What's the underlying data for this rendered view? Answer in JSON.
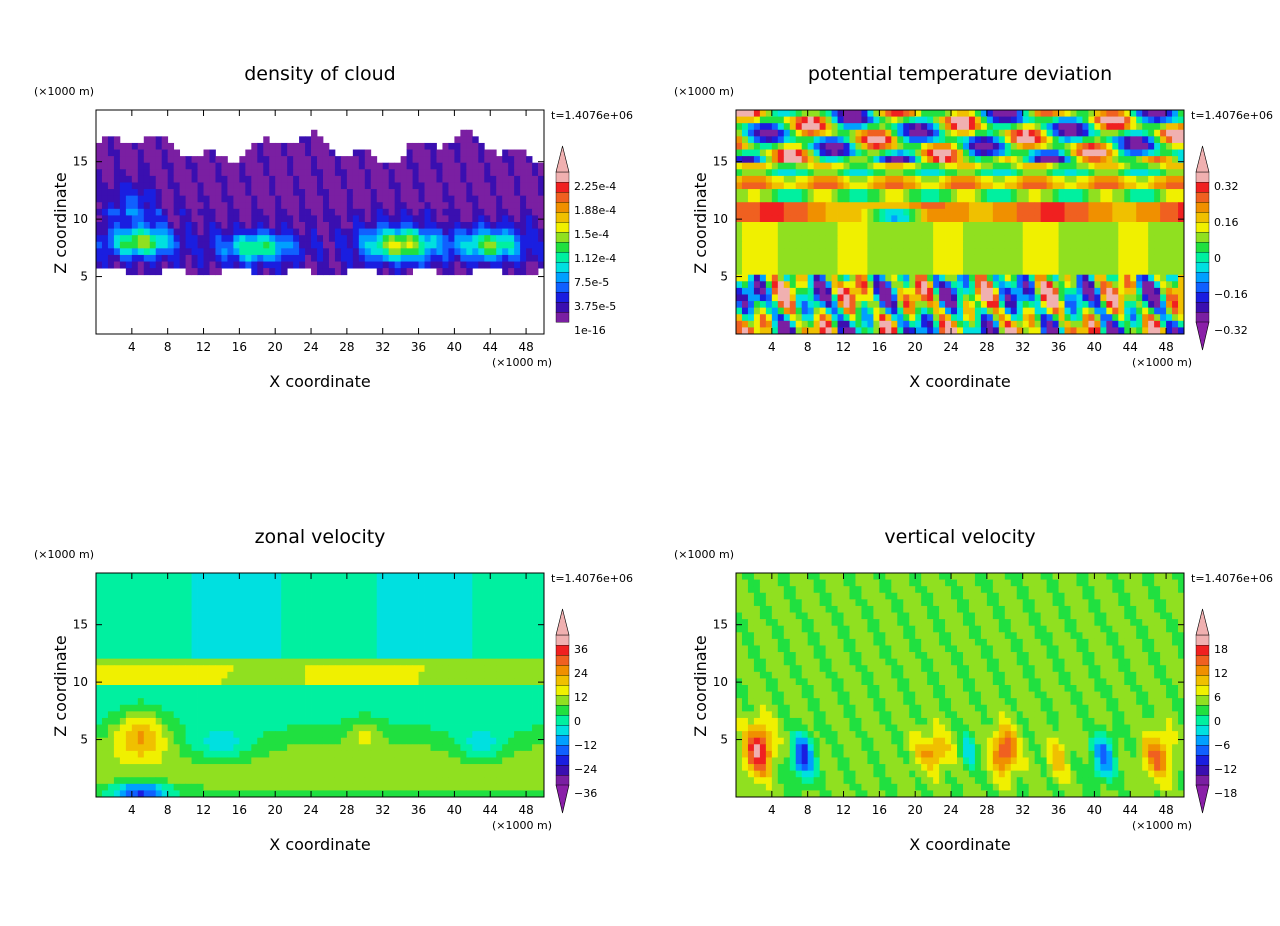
{
  "chart_data": [
    {
      "type": "heatmap",
      "title": "density of cloud",
      "xlabel": "X coordinate",
      "ylabel": "Z coordinate",
      "x_units": "(×1000 m)",
      "y_units": "(×1000 m)",
      "time_label": "t=1.4076e+06",
      "xlim": [
        0,
        50
      ],
      "ylim": [
        0,
        19.5
      ],
      "x_ticks": [
        "4",
        "8",
        "12",
        "16",
        "20",
        "24",
        "28",
        "32",
        "36",
        "40",
        "44",
        "48"
      ],
      "y_ticks": [
        "5",
        "10",
        "15"
      ],
      "colorbar_labels": [
        "1e-16",
        "3.75e-5",
        "7.5e-5",
        "1.12e-4",
        "1.5e-4",
        "1.88e-4",
        "2.25e-4"
      ],
      "colorbar_levels": 15,
      "colorbar_extends": "top",
      "field": "cloud"
    },
    {
      "type": "heatmap",
      "title": "potential temperature deviation",
      "xlabel": "X coordinate",
      "ylabel": "Z coordinate",
      "x_units": "(×1000 m)",
      "y_units": "(×1000 m)",
      "time_label": "t=1.4076e+06",
      "xlim": [
        0,
        50
      ],
      "ylim": [
        0,
        19.5
      ],
      "x_ticks": [
        "4",
        "8",
        "12",
        "16",
        "20",
        "24",
        "28",
        "32",
        "36",
        "40",
        "44",
        "48"
      ],
      "y_ticks": [
        "5",
        "10",
        "15"
      ],
      "colorbar_labels": [
        "−0.32",
        "−0.16",
        "0",
        "0.16",
        "0.32"
      ],
      "colorbar_levels": 15,
      "colorbar_extends": "both",
      "field": "theta"
    },
    {
      "type": "heatmap",
      "title": "zonal velocity",
      "xlabel": "X coordinate",
      "ylabel": "Z coordinate",
      "x_units": "(×1000 m)",
      "y_units": "(×1000 m)",
      "time_label": "t=1.4076e+06",
      "xlim": [
        0,
        50
      ],
      "ylim": [
        0,
        19.5
      ],
      "x_ticks": [
        "4",
        "8",
        "12",
        "16",
        "20",
        "24",
        "28",
        "32",
        "36",
        "40",
        "44",
        "48"
      ],
      "y_ticks": [
        "5",
        "10",
        "15"
      ],
      "colorbar_labels": [
        "−36",
        "−24",
        "−12",
        "0",
        "12",
        "24",
        "36"
      ],
      "colorbar_levels": 15,
      "colorbar_extends": "both",
      "field": "u"
    },
    {
      "type": "heatmap",
      "title": "vertical velocity",
      "xlabel": "X coordinate",
      "ylabel": "Z coordinate",
      "x_units": "(×1000 m)",
      "y_units": "(×1000 m)",
      "time_label": "t=1.4076e+06",
      "xlim": [
        0,
        50
      ],
      "ylim": [
        0,
        19.5
      ],
      "x_ticks": [
        "4",
        "8",
        "12",
        "16",
        "20",
        "24",
        "28",
        "32",
        "36",
        "40",
        "44",
        "48"
      ],
      "y_ticks": [
        "5",
        "10",
        "15"
      ],
      "colorbar_labels": [
        "−18",
        "−12",
        "−6",
        "0",
        "6",
        "12",
        "18"
      ],
      "colorbar_levels": 15,
      "colorbar_extends": "both",
      "field": "w"
    }
  ],
  "colors": {
    "palette": [
      "#7a1fa2",
      "#3a0fb0",
      "#1a1ee0",
      "#1060ff",
      "#00a0ff",
      "#00e0e0",
      "#00f0a0",
      "#20e040",
      "#90e020",
      "#f0f000",
      "#f0c000",
      "#f09000",
      "#f06020",
      "#f02020",
      "#f0b0b0"
    ]
  }
}
